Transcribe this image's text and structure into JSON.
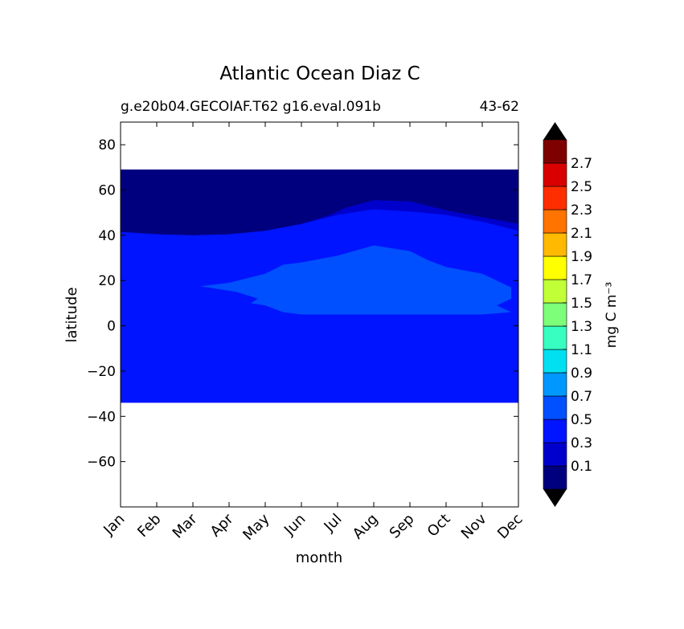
{
  "chart_data": {
    "type": "heatmap",
    "title": "Atlantic Ocean Diaz C",
    "subtitle_left": "g.e20b04.GECOIAF.T62 g16.eval.091b",
    "subtitle_right": "43-62",
    "xlabel": "month",
    "ylabel": "latitude",
    "x_categories": [
      "Jan",
      "Feb",
      "Mar",
      "Apr",
      "May",
      "Jun",
      "Jul",
      "Aug",
      "Sep",
      "Oct",
      "Nov",
      "Dec"
    ],
    "ylim": [
      -80,
      90
    ],
    "y_ticks": [
      "80",
      "60",
      "40",
      "20",
      "0",
      "−20",
      "−40",
      "−60"
    ],
    "y_tick_values": [
      80,
      60,
      40,
      20,
      0,
      -20,
      -40,
      -60
    ],
    "data_lat_range": [
      -34,
      69
    ],
    "colorbar": {
      "label": "mg C m⁻³",
      "levels": [
        -0.1,
        0.1,
        0.2,
        0.3,
        0.4,
        0.5,
        0.6,
        0.7,
        0.8,
        0.9,
        1.0,
        1.1,
        1.2,
        1.3,
        1.4,
        1.5,
        1.6,
        1.7,
        1.8,
        1.9,
        2.0,
        2.1,
        2.2,
        2.3,
        2.4,
        2.5,
        2.6,
        2.7,
        2.8,
        2.9
      ],
      "ticks": [
        "0.1",
        "0.3",
        "0.5",
        "0.7",
        "0.9",
        "1.1",
        "1.3",
        "1.5",
        "1.7",
        "1.9",
        "2.1",
        "2.3",
        "2.5",
        "2.7"
      ],
      "colors": [
        "#00007f",
        "#0000cd",
        "#0014ff",
        "#0050ff",
        "#0098ff",
        "#00e0f0",
        "#36ffc1",
        "#7dff7a",
        "#c1ff36",
        "#ffff00",
        "#ffb900",
        "#ff7300",
        "#ff2e00",
        "#d80000",
        "#7f0000"
      ],
      "under_color": "#000000",
      "over_color": "#000000"
    },
    "regions": [
      {
        "name": "0.1-0.3 contour (north)",
        "color": "#00007f",
        "boundary_month": [
          1,
          2,
          3,
          4,
          5,
          6,
          7,
          8,
          9,
          10,
          11,
          12
        ],
        "boundary_lat": [
          41.5,
          40.5,
          40,
          40.5,
          42,
          45,
          49,
          51.5,
          50.5,
          49,
          46,
          42
        ]
      },
      {
        "name": "0.3-0.5 contour (north)",
        "color": "#0000cd",
        "boundary_month": [
          1,
          2,
          3,
          4,
          5,
          6,
          6.8,
          7.2,
          8,
          9,
          10,
          11,
          12
        ],
        "boundary_lat": [
          41.5,
          40.5,
          40,
          40.5,
          42,
          45,
          49,
          52,
          55.5,
          55,
          51,
          48,
          45
        ]
      },
      {
        "name": "0.5-0.7 subtropical patch",
        "color": "#0050ff",
        "boundary_month": [
          3.2,
          4,
          5,
          5.5,
          6,
          7,
          8,
          9,
          9.5,
          10,
          11,
          11.8,
          11.8,
          11.4,
          11.8,
          11,
          10,
          9,
          8,
          7,
          6,
          5.5,
          5,
          4.6,
          4.8,
          4.2
        ],
        "boundary_lat": [
          17.5,
          19,
          23,
          27,
          28,
          31,
          35.5,
          33,
          29,
          26,
          23,
          17,
          12,
          9,
          6,
          5,
          5,
          5,
          5,
          5,
          5,
          6,
          9,
          10,
          12,
          15
        ]
      }
    ]
  }
}
